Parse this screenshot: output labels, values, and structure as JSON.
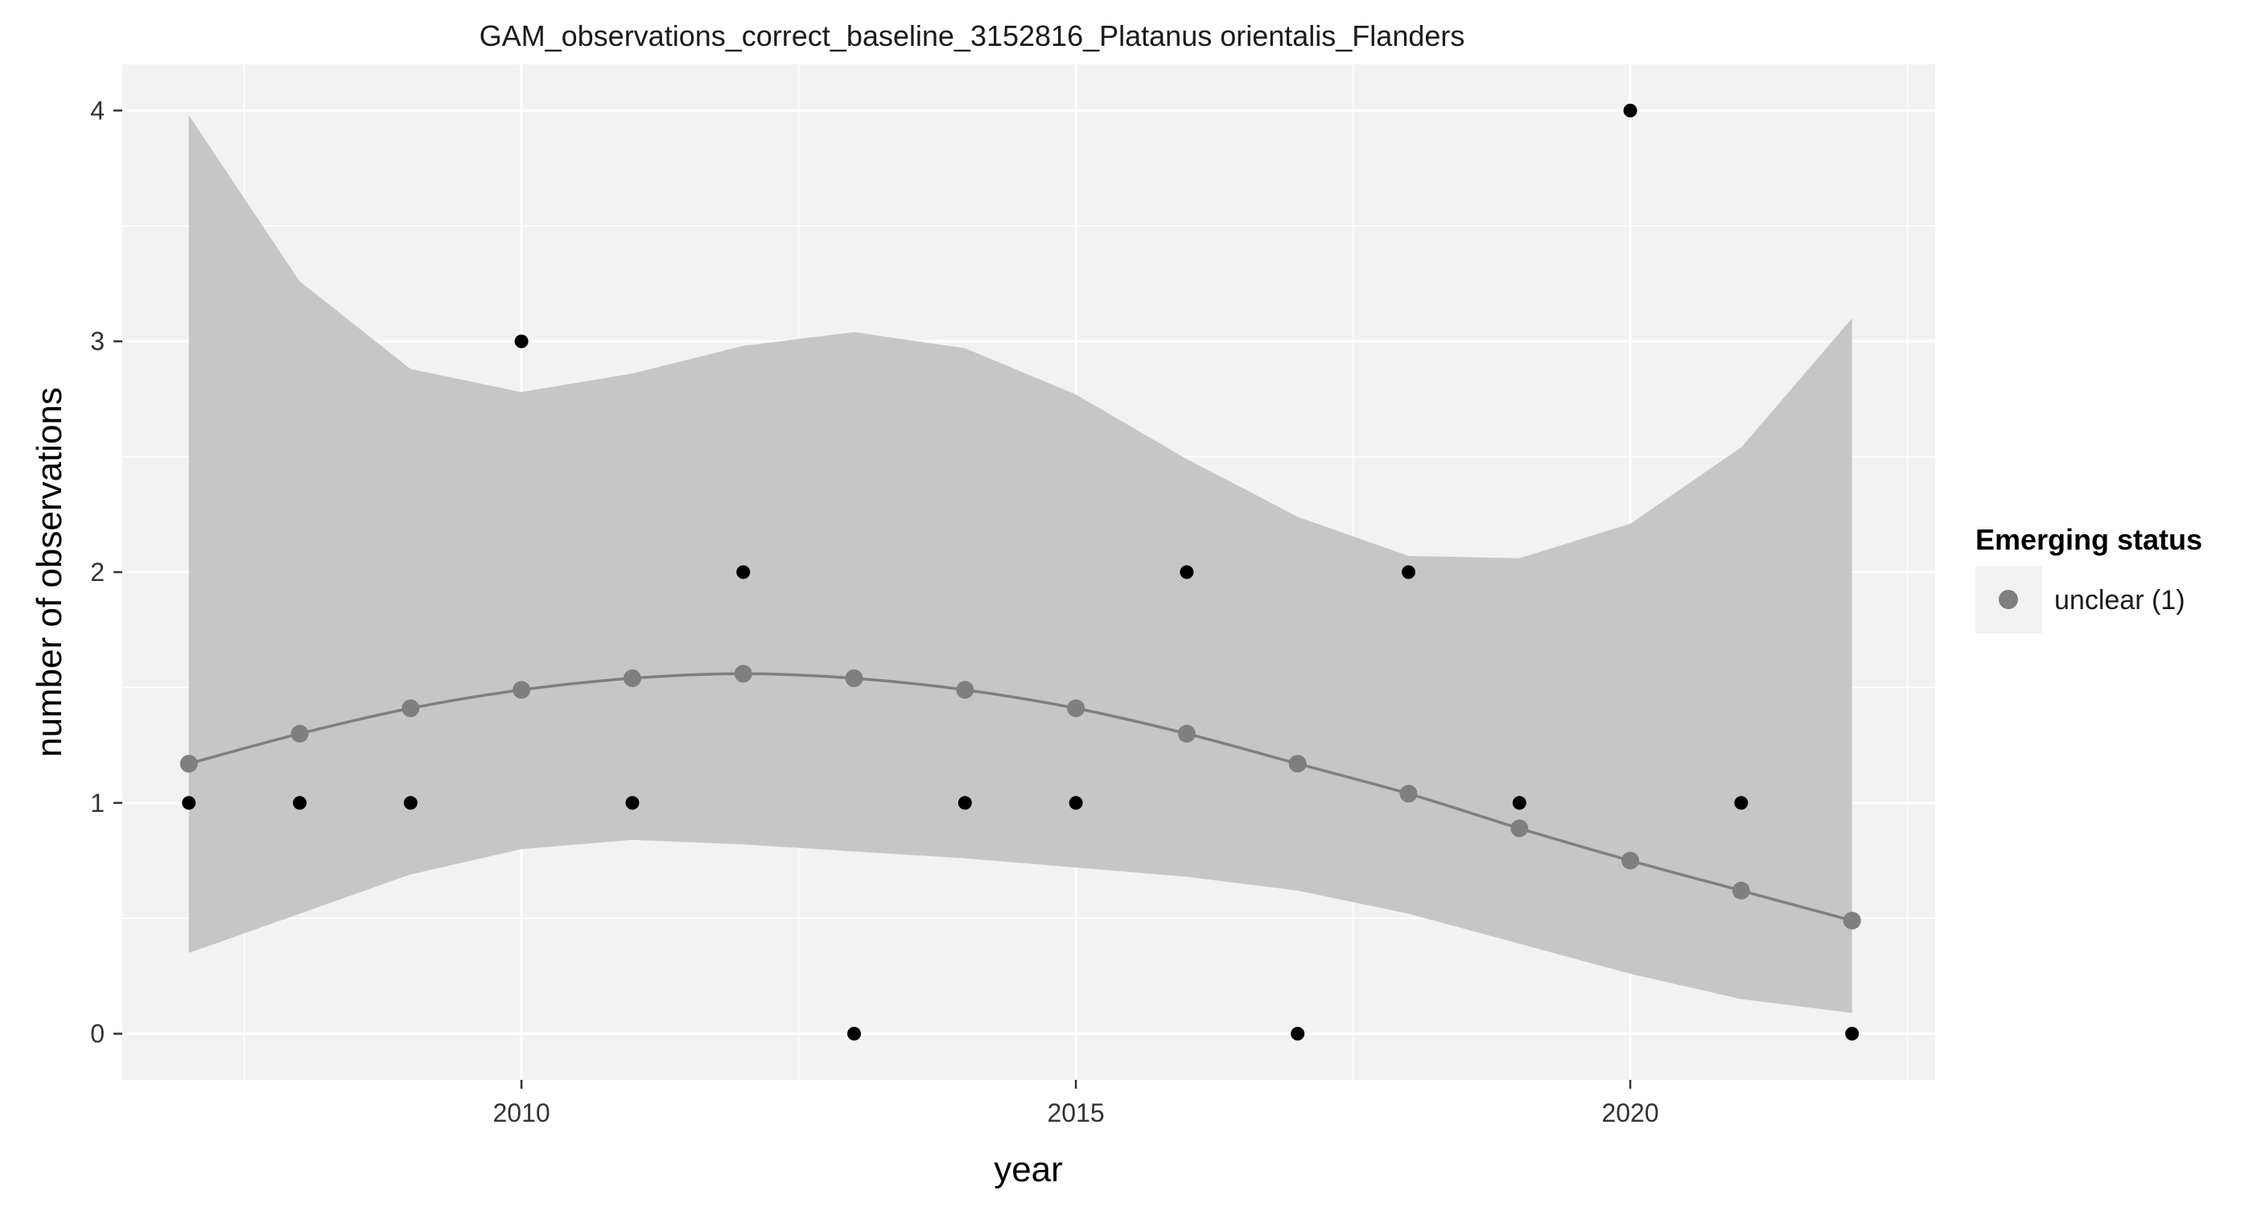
{
  "chart_data": {
    "type": "line",
    "title": "GAM_observations_correct_baseline_3152816_Platanus orientalis_Flanders",
    "xlabel": "year",
    "ylabel": "number of observations",
    "xlim": [
      2006.4,
      2022.75
    ],
    "ylim": [
      -0.2,
      4.2
    ],
    "xticks": [
      2010,
      2015,
      2020
    ],
    "yticks": [
      0,
      1,
      2,
      3,
      4
    ],
    "grid": true,
    "legend": {
      "title": "Emerging status",
      "placement": "right",
      "entries": [
        {
          "label": "unclear (1)",
          "color": "#7f7f7f"
        }
      ]
    },
    "colors": {
      "panel": "#f2f2f2",
      "grid": "#ffffff",
      "ribbon": "#c6c6c6",
      "fit": "#7f7f7f",
      "observation": "#000000"
    },
    "fit_series": {
      "name": "unclear (1)",
      "x": [
        2007,
        2008,
        2009,
        2010,
        2011,
        2012,
        2013,
        2014,
        2015,
        2016,
        2017,
        2018,
        2019,
        2020,
        2021,
        2022
      ],
      "y": [
        1.17,
        1.3,
        1.41,
        1.49,
        1.54,
        1.56,
        1.54,
        1.49,
        1.41,
        1.3,
        1.17,
        1.04,
        0.89,
        0.75,
        0.62,
        0.49
      ],
      "lower": [
        0.35,
        0.52,
        0.69,
        0.8,
        0.84,
        0.82,
        0.79,
        0.76,
        0.72,
        0.68,
        0.62,
        0.52,
        0.39,
        0.26,
        0.15,
        0.09
      ],
      "upper": [
        3.98,
        3.26,
        2.88,
        2.78,
        2.86,
        2.98,
        3.04,
        2.97,
        2.77,
        2.49,
        2.24,
        2.07,
        2.06,
        2.21,
        2.54,
        3.1
      ]
    },
    "observations": {
      "x": [
        2007,
        2008,
        2009,
        2010,
        2011,
        2012,
        2013,
        2014,
        2015,
        2016,
        2017,
        2018,
        2019,
        2020,
        2021,
        2022
      ],
      "y": [
        1,
        1,
        1,
        3,
        1,
        2,
        0,
        1,
        1,
        2,
        0,
        2,
        1,
        4,
        1,
        0
      ]
    }
  }
}
